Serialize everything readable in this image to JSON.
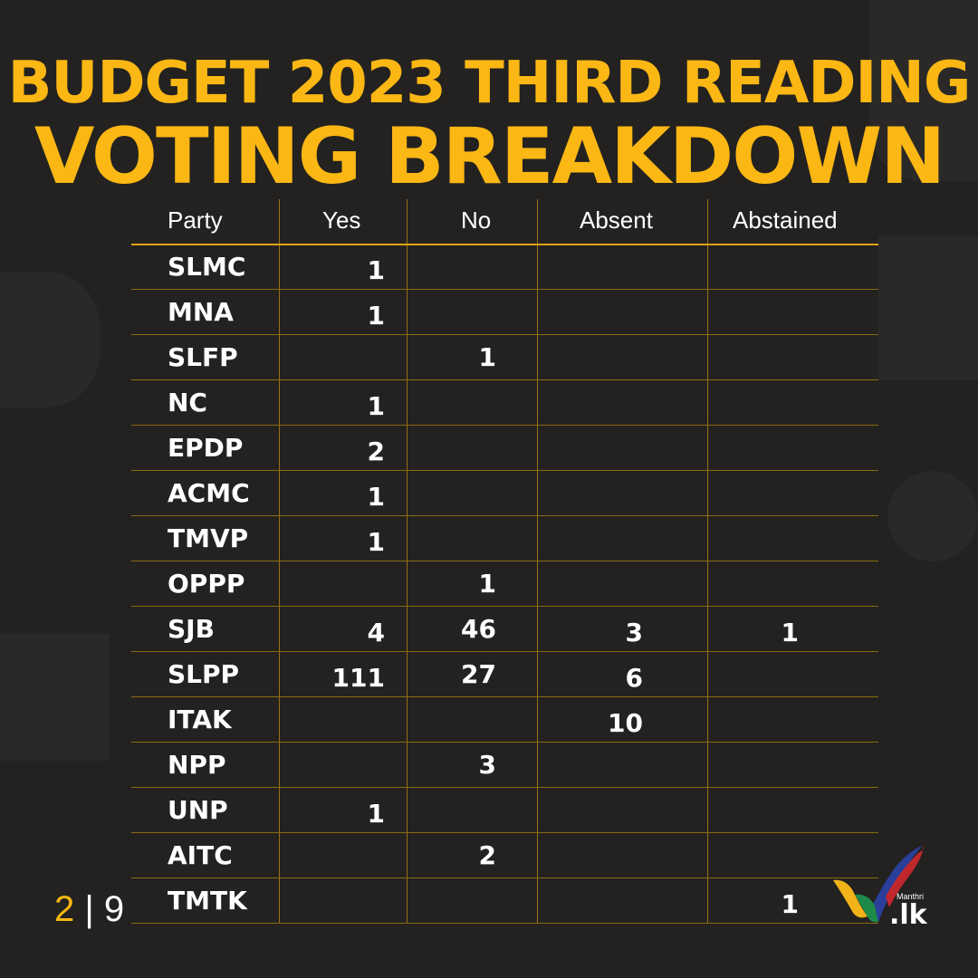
{
  "title": {
    "line1": "BUDGET 2023 THIRD READING",
    "line2": "VOTING BREAKDOWN"
  },
  "table": {
    "headers": [
      "Party",
      "Yes",
      "No",
      "Absent",
      "Abstained"
    ],
    "rows": [
      {
        "party": "SLMC",
        "yes": "1",
        "no": "",
        "absent": "",
        "abstained": ""
      },
      {
        "party": "MNA",
        "yes": "1",
        "no": "",
        "absent": "",
        "abstained": ""
      },
      {
        "party": "SLFP",
        "yes": "",
        "no": "1",
        "absent": "",
        "abstained": ""
      },
      {
        "party": "NC",
        "yes": "1",
        "no": "",
        "absent": "",
        "abstained": ""
      },
      {
        "party": "EPDP",
        "yes": "2",
        "no": "",
        "absent": "",
        "abstained": ""
      },
      {
        "party": "ACMC",
        "yes": "1",
        "no": "",
        "absent": "",
        "abstained": ""
      },
      {
        "party": "TMVP",
        "yes": "1",
        "no": "",
        "absent": "",
        "abstained": ""
      },
      {
        "party": "OPPP",
        "yes": "",
        "no": "1",
        "absent": "",
        "abstained": ""
      },
      {
        "party": "SJB",
        "yes": "4",
        "no": "46",
        "absent": "3",
        "abstained": "1"
      },
      {
        "party": "SLPP",
        "yes": "111",
        "no": "27",
        "absent": "6",
        "abstained": ""
      },
      {
        "party": "ITAK",
        "yes": "",
        "no": "",
        "absent": "10",
        "abstained": ""
      },
      {
        "party": "NPP",
        "yes": "",
        "no": "3",
        "absent": "",
        "abstained": ""
      },
      {
        "party": "UNP",
        "yes": "1",
        "no": "",
        "absent": "",
        "abstained": ""
      },
      {
        "party": "AITC",
        "yes": "",
        "no": "2",
        "absent": "",
        "abstained": ""
      },
      {
        "party": "TMTK",
        "yes": "",
        "no": "",
        "absent": "",
        "abstained": "1"
      }
    ]
  },
  "pagination": {
    "current": "2",
    "separator": "|",
    "total": "9"
  },
  "logo": {
    "small_text": "Manthri",
    "domain_text": ".lk"
  },
  "colors": {
    "accent": "#fbb714",
    "background": "#232220",
    "text": "#ffffff"
  }
}
